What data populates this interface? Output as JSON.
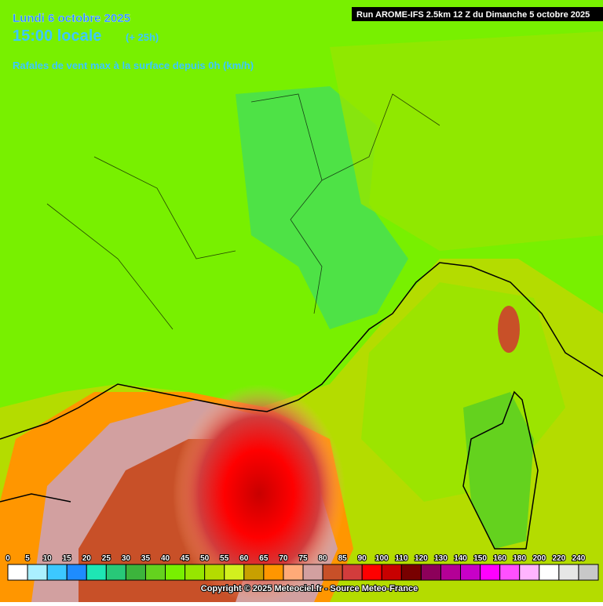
{
  "header": {
    "date": "Lundi 6 octobre 2025",
    "time": "15:00 locale",
    "lead": "(+ 25h)",
    "parameter": "Rafales de vent max à la surface depuis 0h (km/h)",
    "run": "Run AROME-IFS 2.5km 12 Z du Dimanche 5 octobre 2025"
  },
  "legend": {
    "values": [
      0,
      5,
      10,
      15,
      20,
      25,
      30,
      35,
      40,
      45,
      50,
      55,
      60,
      65,
      70,
      75,
      80,
      85,
      90,
      100,
      110,
      120,
      130,
      140,
      150,
      160,
      180,
      200,
      220,
      240
    ],
    "colors": [
      "#ffffff",
      "#aaf0ff",
      "#3cc8ff",
      "#1e8cff",
      "#1ee6b4",
      "#28c878",
      "#3cb43c",
      "#64d21e",
      "#78f000",
      "#96e600",
      "#b4dc00",
      "#d2f01e",
      "#c8a000",
      "#ff9600",
      "#ffaa78",
      "#d2a0a0",
      "#c85028",
      "#d23c3c",
      "#ff0000",
      "#c80000",
      "#780000",
      "#8c005a",
      "#b40096",
      "#c800c8",
      "#ff00ff",
      "#ff50ff",
      "#ffb4ff",
      "#ffffff",
      "#e6e6e6",
      "#c8c8c8"
    ]
  },
  "footer": {
    "copyright": "Copyright © 2025 Meteociel.fr - Source Meteo-France"
  }
}
